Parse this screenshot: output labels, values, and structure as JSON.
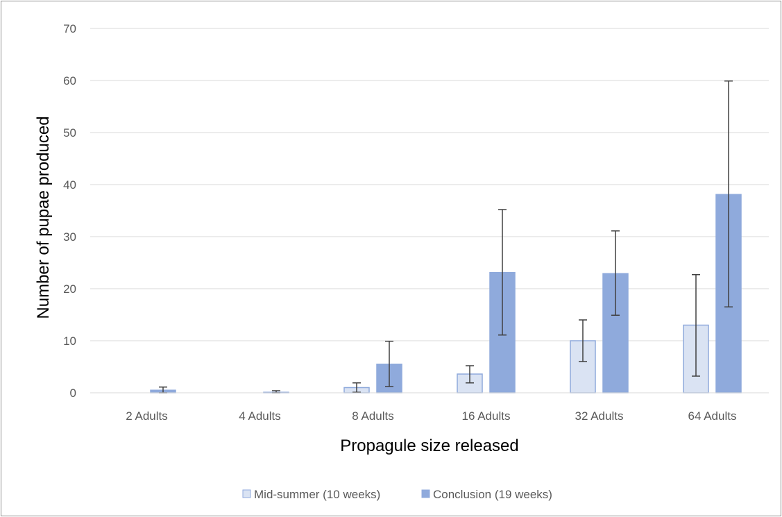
{
  "chart_data": {
    "type": "bar",
    "title": "",
    "xlabel": "Propagule size released",
    "ylabel": "Number of pupae produced",
    "ylim": [
      0,
      70
    ],
    "yticks": [
      0,
      10,
      20,
      30,
      40,
      50,
      60,
      70
    ],
    "grid": true,
    "legend_position": "bottom",
    "categories": [
      "2 Adults",
      "4 Adults",
      "8 Adults",
      "16 Adults",
      "32 Adults",
      "64 Adults"
    ],
    "series": [
      {
        "name": "Mid-summer (10 weeks)",
        "color": "#dae3f3",
        "edge_color": "#8faadc",
        "values": [
          0,
          0,
          1.0,
          3.6,
          10.0,
          13.0
        ],
        "error_low": [
          0,
          0,
          0.1,
          1.9,
          6.0,
          3.2
        ],
        "error_high": [
          0,
          0,
          1.9,
          5.2,
          14.0,
          22.7
        ]
      },
      {
        "name": "Conclusion (19 weeks)",
        "color": "#8faadc",
        "edge_color": "#8faadc",
        "values": [
          0.5,
          0.1,
          5.5,
          23.1,
          22.9,
          38.1
        ],
        "error_low": [
          0,
          0,
          1.2,
          11.1,
          14.9,
          16.5
        ],
        "error_high": [
          1.1,
          0.4,
          9.9,
          35.2,
          31.1,
          59.9
        ]
      }
    ]
  }
}
